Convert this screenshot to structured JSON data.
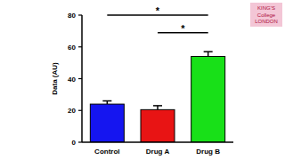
{
  "chart_data": {
    "type": "bar",
    "y_label": "Data (AU)",
    "categories": [
      "Control",
      "Drug A",
      "Drug B"
    ],
    "values": [
      24,
      20.5,
      54
    ],
    "errors": [
      2,
      2.5,
      3
    ],
    "colors": [
      "#1515f0",
      "#e81414",
      "#18e018"
    ],
    "ylim": [
      0,
      80
    ],
    "yticks": [
      0,
      20,
      40,
      60,
      80
    ],
    "significance": [
      {
        "from": "Control",
        "to": "Drug B",
        "label": "*",
        "y": 80
      },
      {
        "from": "Drug A",
        "to": "Drug B",
        "label": "*",
        "y": 69
      }
    ],
    "logo": [
      "KING'S",
      "College",
      "LONDON"
    ]
  }
}
